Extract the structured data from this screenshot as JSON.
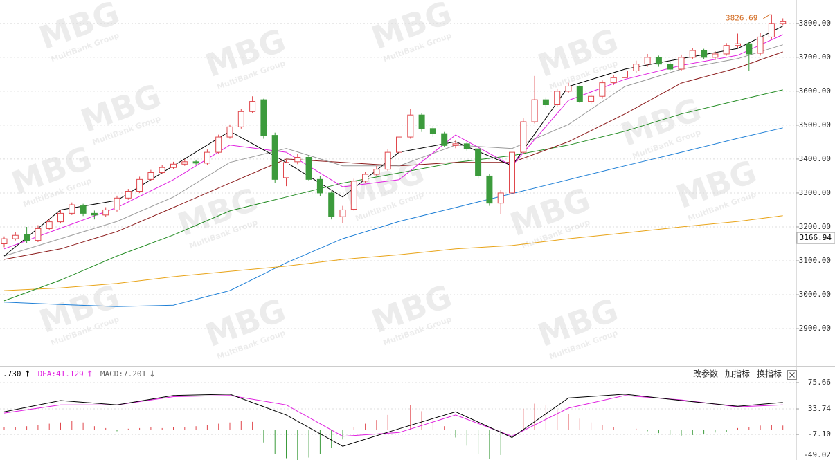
{
  "chart_data": [
    {
      "type": "candlestick",
      "open": [
        3150,
        3165,
        3178,
        3160,
        3195,
        3215,
        3240,
        3262,
        3240,
        3235,
        3250,
        3285,
        3305,
        3340,
        3360,
        3375,
        3385,
        3392,
        3388,
        3420,
        3465,
        3495,
        3540,
        3575,
        3470,
        3345,
        3392,
        3405,
        3340,
        3300,
        3230,
        3252,
        3335,
        3355,
        3370,
        3420,
        3465,
        3530,
        3490,
        3475,
        3440,
        3445,
        3430,
        3350,
        3270,
        3300,
        3420,
        3510,
        3575,
        3560,
        3600,
        3615,
        3570,
        3585,
        3625,
        3640,
        3660,
        3680,
        3700,
        3680,
        3665,
        3700,
        3720,
        3700,
        3710,
        3735,
        3740,
        3712,
        3760,
        3800
      ],
      "high": [
        3172,
        3185,
        3200,
        3205,
        3222,
        3250,
        3272,
        3268,
        3248,
        3258,
        3292,
        3312,
        3348,
        3368,
        3382,
        3392,
        3400,
        3398,
        3428,
        3472,
        3502,
        3548,
        3585,
        3578,
        3478,
        3398,
        3415,
        3412,
        3350,
        3305,
        3262,
        3342,
        3362,
        3380,
        3430,
        3478,
        3548,
        3535,
        3498,
        3480,
        3455,
        3450,
        3435,
        3355,
        3308,
        3428,
        3520,
        3645,
        3582,
        3608,
        3625,
        3618,
        3592,
        3632,
        3648,
        3668,
        3690,
        3710,
        3705,
        3688,
        3708,
        3728,
        3725,
        3718,
        3742,
        3770,
        3745,
        3772,
        3826.69,
        3815
      ],
      "low": [
        3140,
        3160,
        3152,
        3155,
        3190,
        3210,
        3235,
        3232,
        3222,
        3230,
        3245,
        3280,
        3300,
        3335,
        3355,
        3370,
        3380,
        3382,
        3382,
        3415,
        3460,
        3490,
        3535,
        3460,
        3330,
        3320,
        3385,
        3335,
        3290,
        3222,
        3212,
        3248,
        3330,
        3350,
        3365,
        3412,
        3460,
        3480,
        3465,
        3435,
        3432,
        3425,
        3342,
        3262,
        3238,
        3295,
        3415,
        3505,
        3552,
        3555,
        3595,
        3565,
        3562,
        3578,
        3618,
        3632,
        3655,
        3672,
        3672,
        3660,
        3660,
        3695,
        3695,
        3692,
        3705,
        3728,
        3660,
        3705,
        3755,
        3795
      ],
      "close": [
        3165,
        3175,
        3160,
        3195,
        3215,
        3240,
        3265,
        3240,
        3235,
        3250,
        3285,
        3305,
        3340,
        3360,
        3375,
        3385,
        3392,
        3388,
        3420,
        3465,
        3495,
        3540,
        3570,
        3470,
        3340,
        3390,
        3405,
        3340,
        3300,
        3230,
        3250,
        3335,
        3355,
        3370,
        3420,
        3465,
        3530,
        3490,
        3475,
        3440,
        3445,
        3430,
        3350,
        3270,
        3300,
        3420,
        3510,
        3575,
        3560,
        3600,
        3615,
        3570,
        3585,
        3625,
        3640,
        3660,
        3680,
        3700,
        3680,
        3665,
        3700,
        3720,
        3700,
        3710,
        3735,
        3740,
        3710,
        3760,
        3800,
        3805
      ],
      "up_color": "#e0474c",
      "down_color": "#3c9b3c",
      "series": [
        {
          "color": "#1e7fd6",
          "x": [
            0,
            5,
            10,
            15,
            20,
            25,
            30,
            35,
            40,
            45,
            50,
            55,
            60,
            65,
            69
          ],
          "values": [
            2978,
            2971,
            2965,
            2969,
            3012,
            3094,
            3165,
            3216,
            3257,
            3298,
            3339,
            3380,
            3420,
            3461,
            3492
          ]
        },
        {
          "color": "#e8a317",
          "x": [
            0,
            5,
            10,
            15,
            20,
            25,
            30,
            35,
            40,
            45,
            50,
            55,
            60,
            65,
            69
          ],
          "values": [
            3012,
            3020,
            3033,
            3053,
            3069,
            3084,
            3104,
            3118,
            3135,
            3145,
            3165,
            3182,
            3200,
            3216,
            3233
          ]
        },
        {
          "color": "#228b22",
          "x": [
            0,
            5,
            10,
            15,
            20,
            25,
            30,
            35,
            40,
            45,
            50,
            55,
            60,
            65,
            69
          ],
          "values": [
            2982,
            3043,
            3114,
            3176,
            3247,
            3288,
            3329,
            3359,
            3390,
            3410,
            3441,
            3482,
            3533,
            3573,
            3604
          ]
        },
        {
          "color": "#8b1a1a",
          "x": [
            0,
            5,
            10,
            15,
            20,
            25,
            30,
            35,
            40,
            45,
            50,
            55,
            60,
            65,
            69
          ],
          "values": [
            3104,
            3135,
            3186,
            3257,
            3329,
            3400,
            3390,
            3380,
            3390,
            3390,
            3451,
            3533,
            3624,
            3669,
            3716
          ]
        },
        {
          "color": "#999999",
          "x": [
            0,
            5,
            10,
            15,
            20,
            25,
            30,
            35,
            40,
            45,
            50,
            55,
            60,
            65,
            69
          ],
          "values": [
            3114,
            3165,
            3216,
            3288,
            3390,
            3431,
            3380,
            3380,
            3441,
            3431,
            3502,
            3614,
            3665,
            3696,
            3737
          ]
        },
        {
          "color": "#e020e0",
          "x": [
            0,
            5,
            10,
            15,
            20,
            25,
            30,
            35,
            40,
            45,
            50,
            55,
            60,
            65,
            69
          ],
          "values": [
            3135,
            3196,
            3257,
            3339,
            3441,
            3420,
            3318,
            3339,
            3471,
            3380,
            3573,
            3635,
            3676,
            3706,
            3767
          ]
        },
        {
          "color": "#000000",
          "x": [
            0,
            5,
            10,
            15,
            20,
            25,
            30,
            35,
            40,
            45,
            50,
            55,
            60,
            65,
            69
          ],
          "values": [
            3114,
            3250,
            3278,
            3380,
            3482,
            3390,
            3288,
            3420,
            3451,
            3380,
            3614,
            3665,
            3696,
            3726,
            3792
          ]
        }
      ],
      "ylim": [
        2792,
        3869
      ],
      "yticks": [
        {
          "value": 2900,
          "label": "2900.00"
        },
        {
          "value": 3000,
          "label": "3000.00"
        },
        {
          "value": 3100,
          "label": "3100.00"
        },
        {
          "value": 3200,
          "label": "3200.00"
        },
        {
          "value": 3300,
          "label": "3300.00"
        },
        {
          "value": 3400,
          "label": "3400.00"
        },
        {
          "value": 3500,
          "label": "3500.00"
        },
        {
          "value": 3600,
          "label": "3600.00"
        },
        {
          "value": 3700,
          "label": "3700.00"
        },
        {
          "value": 3800,
          "label": "3800.00"
        }
      ],
      "price_marker": 3166.94,
      "grid": true,
      "watermark": {
        "logo": "MBG",
        "caption": "MultiBank Group"
      }
    },
    {
      "type": "macd",
      "indicators": [
        {
          "text": ".730",
          "arrow": "↑",
          "color": "#000000"
        },
        {
          "text": "DEA:41.129",
          "arrow": "↑",
          "color": "#e020e0"
        },
        {
          "text": "MACD:7.201",
          "arrow": "↓",
          "color": "#666666"
        }
      ],
      "buttons": [
        "改参数",
        "加指标",
        "换指标"
      ],
      "values": [
        4,
        5,
        6,
        8,
        10,
        12,
        14,
        12,
        6,
        3,
        -2,
        2,
        3,
        4,
        3,
        5,
        4,
        6,
        8,
        10,
        12,
        14,
        13,
        -20,
        -38,
        -45,
        -48,
        -44,
        -38,
        -28,
        -15,
        5,
        10,
        16,
        24,
        34,
        40,
        30,
        18,
        6,
        -12,
        -25,
        -38,
        -46,
        -40,
        12,
        34,
        42,
        40,
        32,
        26,
        18,
        12,
        8,
        5,
        3,
        2,
        -2,
        -5,
        -8,
        -9,
        -8,
        -6,
        -4,
        -3,
        3,
        5,
        7,
        8,
        7
      ],
      "up_color": "#e0474c",
      "down_color": "#3c9b3c",
      "series": [
        {
          "color": "#e020e0",
          "x": [
            0,
            5,
            10,
            15,
            20,
            25,
            30,
            35,
            40,
            45,
            50,
            55,
            60,
            65,
            69
          ],
          "values": [
            27,
            40,
            40,
            53,
            55,
            40,
            -10,
            -4,
            24,
            -10,
            35,
            55,
            48,
            37,
            40
          ]
        },
        {
          "color": "#000000",
          "x": [
            0,
            5,
            10,
            15,
            20,
            25,
            30,
            35,
            40,
            45,
            50,
            55,
            60,
            65,
            69
          ],
          "values": [
            29,
            47,
            40,
            55,
            57,
            24,
            -26,
            2,
            29,
            -12,
            51,
            57,
            47,
            38,
            44
          ]
        }
      ],
      "ylim": [
        -50,
        101
      ],
      "yticks": [
        -49.02,
        {
          "value": -7.1,
          "label": "-7.10"
        },
        33.74,
        75.66
      ],
      "grid": true
    }
  ]
}
